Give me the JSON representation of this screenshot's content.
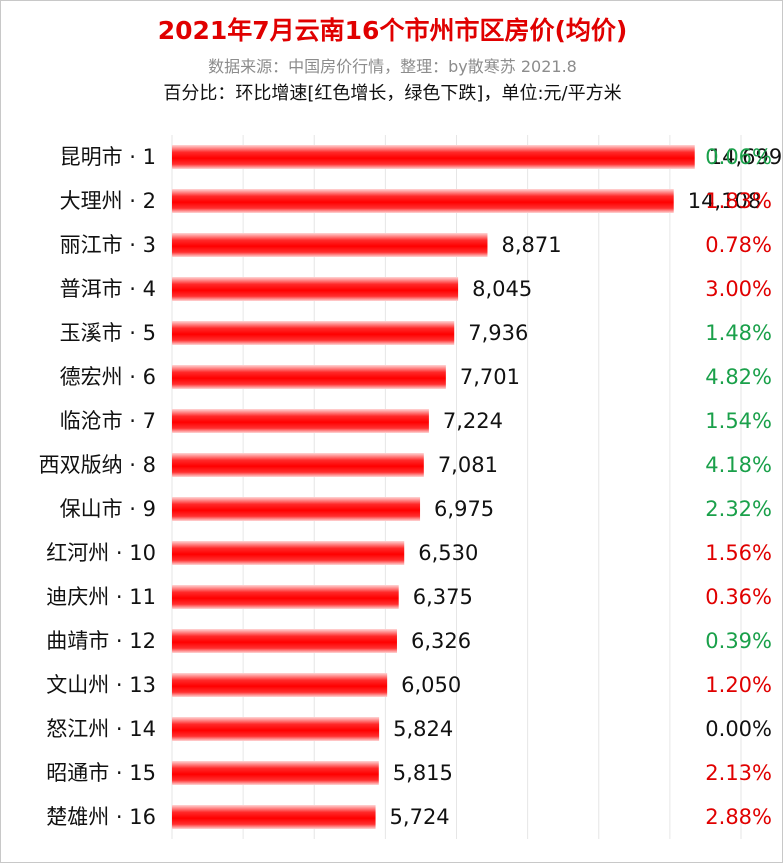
{
  "header": {
    "title": "2021年7月云南16个市州市区房价(均价)",
    "subtitle": "数据来源：中国房价行情，整理：by散寒苏  2021.8",
    "note": "百分比：环比增速[红色增长，绿色下跌]，单位:元/平方米"
  },
  "colors": {
    "bar": "#ff0000",
    "increase": "#e00000",
    "decrease": "#1aa04a",
    "neutral": "#111111",
    "gridline": "#e6e6e6"
  },
  "chart_data": {
    "type": "bar",
    "orientation": "horizontal",
    "categories": [
      "昆明市 · 1",
      "大理州 · 2",
      "丽江市 · 3",
      "普洱市 · 4",
      "玉溪市 · 5",
      "德宏州 · 6",
      "临沧市 · 7",
      "西双版纳 · 8",
      "保山市 · 9",
      "红河州 · 10",
      "迪庆州 · 11",
      "曲靖市 · 12",
      "文山州 · 13",
      "怒江州 · 14",
      "昭通市 · 15",
      "楚雄州 · 16"
    ],
    "values": [
      14699,
      14108,
      8871,
      8045,
      7936,
      7701,
      7224,
      7081,
      6975,
      6530,
      6375,
      6326,
      6050,
      5824,
      5815,
      5724
    ],
    "value_labels": [
      "14,699",
      "14,108",
      "8,871",
      "8,045",
      "7,936",
      "7,701",
      "7,224",
      "7,081",
      "6,975",
      "6,530",
      "6,375",
      "6,326",
      "6,050",
      "5,824",
      "5,815",
      "5,724"
    ],
    "mom_change": [
      "0.06%",
      "1.83%",
      "0.78%",
      "3.00%",
      "1.48%",
      "4.82%",
      "1.54%",
      "4.18%",
      "2.32%",
      "1.56%",
      "0.36%",
      "0.39%",
      "1.20%",
      "0.00%",
      "2.13%",
      "2.88%"
    ],
    "mom_direction": [
      "down",
      "up",
      "up",
      "up",
      "down",
      "down",
      "down",
      "down",
      "down",
      "up",
      "up",
      "down",
      "up",
      "flat",
      "up",
      "up"
    ],
    "xlim": [
      0,
      16000
    ],
    "grid": true
  }
}
